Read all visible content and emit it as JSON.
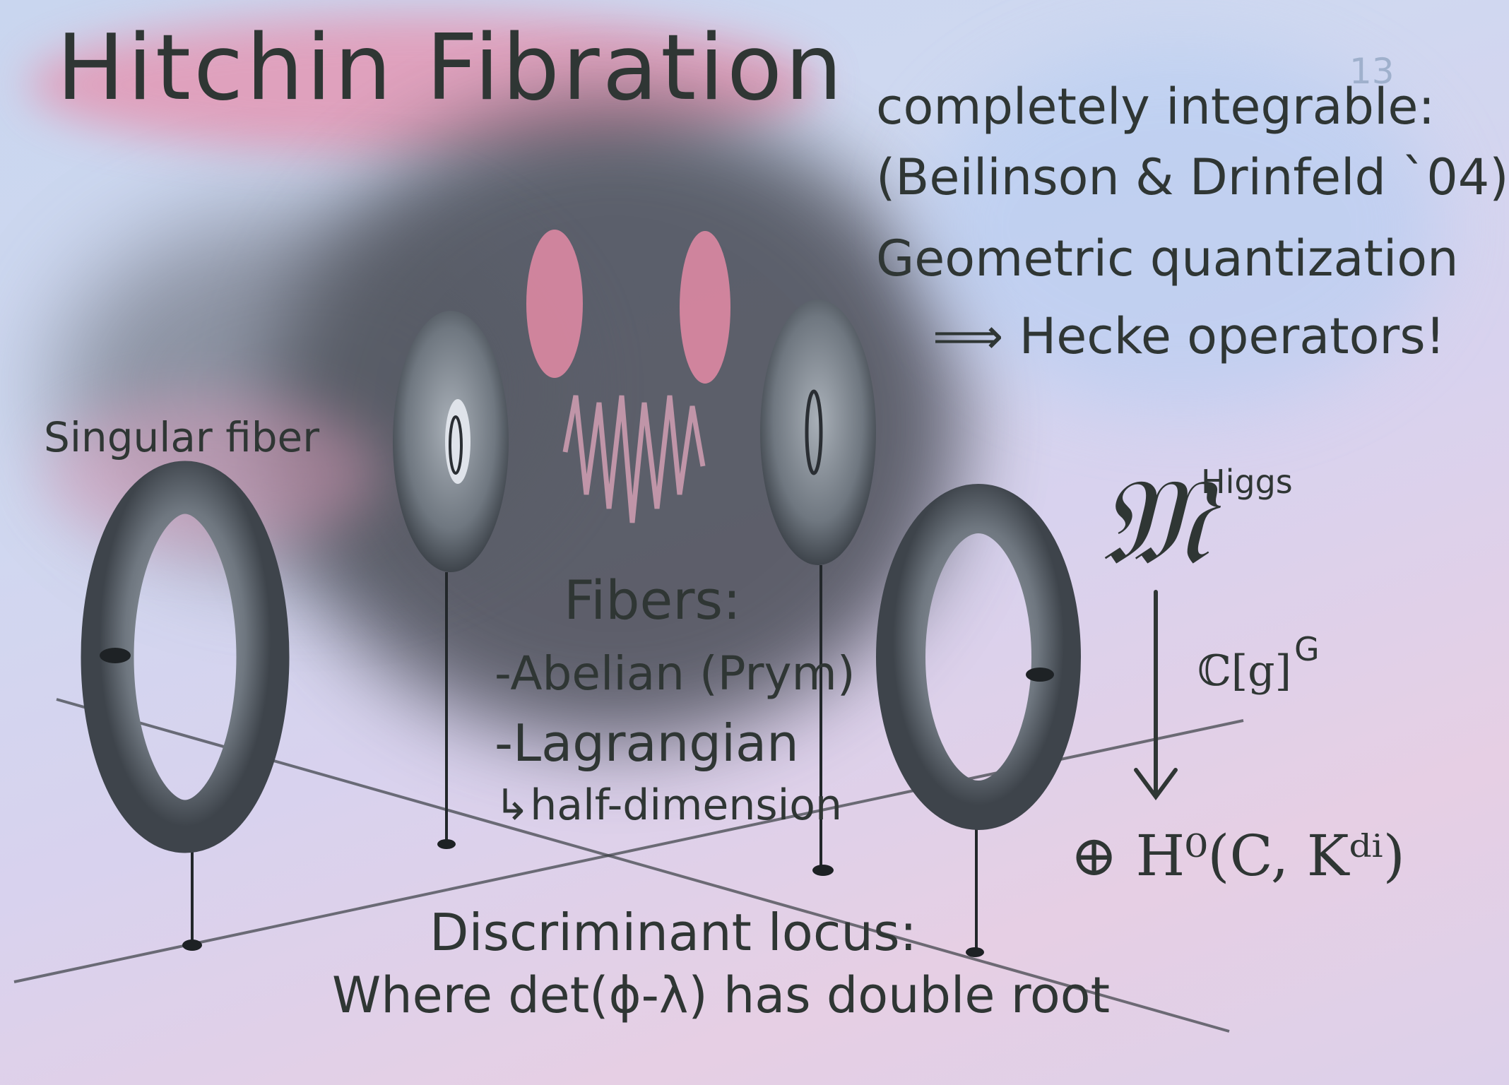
{
  "title": "Hitchin Fibration",
  "page_number": "13",
  "right_info": {
    "line1": "completely integrable:",
    "line2": "(Beilinson & Drinfeld `04)",
    "line3": "Geometric quantization",
    "line4": "⟹ Hecke operators!"
  },
  "singular_label": "Singular fiber",
  "fibers": {
    "heading": "Fibers:",
    "item1": "-Abelian (Prym)",
    "item2": "-Lagrangian",
    "item3": "↳half-dimension"
  },
  "discriminant": {
    "line1": "Discriminant locus:",
    "line2": "Where det(ϕ-λ) has double root"
  },
  "diagram": {
    "space": "𝔐",
    "space_sup": "Higgs",
    "map_label": "ℂ[g]",
    "map_sup": "G",
    "base": "⊕ H⁰(C, Kᵈⁱ)"
  },
  "colors": {
    "ink": "#2f3634",
    "pink_wash": "#e48ba6",
    "smoke": "#4a4d55",
    "torus": "#6f7780"
  }
}
